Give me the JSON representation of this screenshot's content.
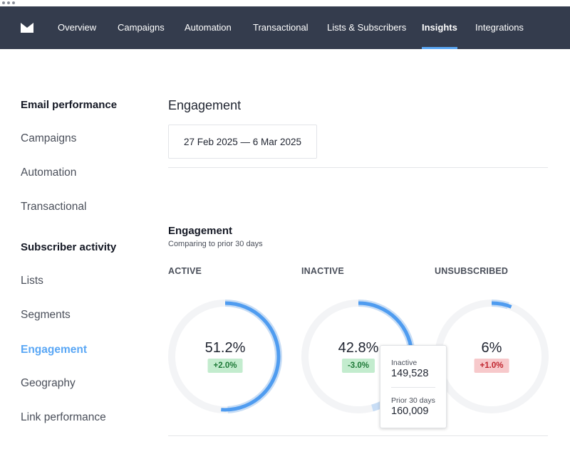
{
  "nav": {
    "items": [
      {
        "label": "Overview"
      },
      {
        "label": "Campaigns"
      },
      {
        "label": "Automation"
      },
      {
        "label": "Transactional"
      },
      {
        "label": "Lists & Subscribers"
      },
      {
        "label": "Insights",
        "active": true
      },
      {
        "label": "Integrations"
      }
    ]
  },
  "sidebar": {
    "email_heading": "Email performance",
    "email_items": [
      "Campaigns",
      "Automation",
      "Transactional"
    ],
    "subscriber_heading": "Subscriber activity",
    "subscriber_items": [
      "Lists",
      "Segments",
      "Engagement",
      "Geography",
      "Link performance"
    ],
    "active_item": "Engagement"
  },
  "main": {
    "title": "Engagement",
    "date_range": "27 Feb 2025 — 6 Mar 2025",
    "section": {
      "title": "Engagement",
      "subtitle": "Comparing to prior 30 days"
    },
    "metrics": [
      {
        "label": "ACTIVE",
        "percent_text": "51.2%",
        "value": 51.2,
        "prior": 49.2,
        "change": "+2.0%",
        "change_direction": "up"
      },
      {
        "label": "INACTIVE",
        "percent_text": "42.8%",
        "value": 42.8,
        "prior": 45.8,
        "change": "-3.0%",
        "change_direction": "up"
      },
      {
        "label": "UNSUBSCRIBED",
        "percent_text": "6%",
        "value": 6,
        "prior": 5,
        "change": "+1.0%",
        "change_direction": "down"
      }
    ],
    "tooltip": {
      "current_label": "Inactive",
      "current_value": "149,528",
      "prior_label": "Prior 30 days",
      "prior_value": "160,009"
    }
  },
  "colors": {
    "nav_bg": "#343c4d",
    "accent": "#5aa7f5",
    "ring_current": "#4f9cf0",
    "ring_prior": "#c8ddf5",
    "ring_track": "#f3f4f6",
    "positive_bg": "#c3ecce",
    "negative_bg": "#f7c9cb"
  },
  "icons": {
    "logo": "envelope-logo-icon"
  }
}
